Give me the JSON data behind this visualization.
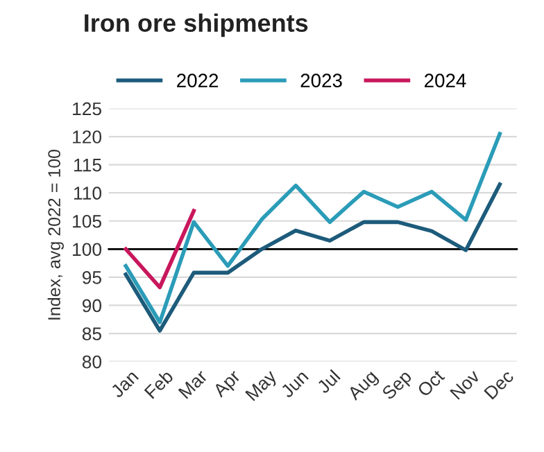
{
  "chart_data": {
    "type": "line",
    "title": "Iron ore shipments",
    "ylabel": "Index, avg 2022 = 100",
    "categories": [
      "Jan",
      "Feb",
      "Mar",
      "Apr",
      "May",
      "Jun",
      "Jul",
      "Aug",
      "Sep",
      "Oct",
      "Nov",
      "Dec"
    ],
    "series": [
      {
        "name": "2022",
        "color": "#1d5b7b",
        "values": [
          95.5,
          85.5,
          95.8,
          95.8,
          100,
          103.3,
          101.5,
          104.8,
          104.8,
          103.2,
          99.8,
          111.5
        ]
      },
      {
        "name": "2023",
        "color": "#2b9cb8",
        "values": [
          97,
          87,
          104.8,
          97,
          105.3,
          111.3,
          104.8,
          110.2,
          107.5,
          110.2,
          105.2,
          120.5
        ]
      },
      {
        "name": "2024",
        "color": "#c8175c",
        "values": [
          100,
          93.2,
          106.8,
          null,
          null,
          null,
          null,
          null,
          null,
          null,
          null,
          null
        ]
      }
    ],
    "ylim": [
      80,
      125
    ],
    "yticks": [
      80,
      85,
      90,
      95,
      100,
      105,
      110,
      115,
      120,
      125
    ],
    "grid": "y",
    "legend": "top",
    "marker": "none",
    "line_style": "solid",
    "ref_lines": [
      {
        "axis": "y",
        "value": 100,
        "color": "#000000"
      }
    ]
  }
}
